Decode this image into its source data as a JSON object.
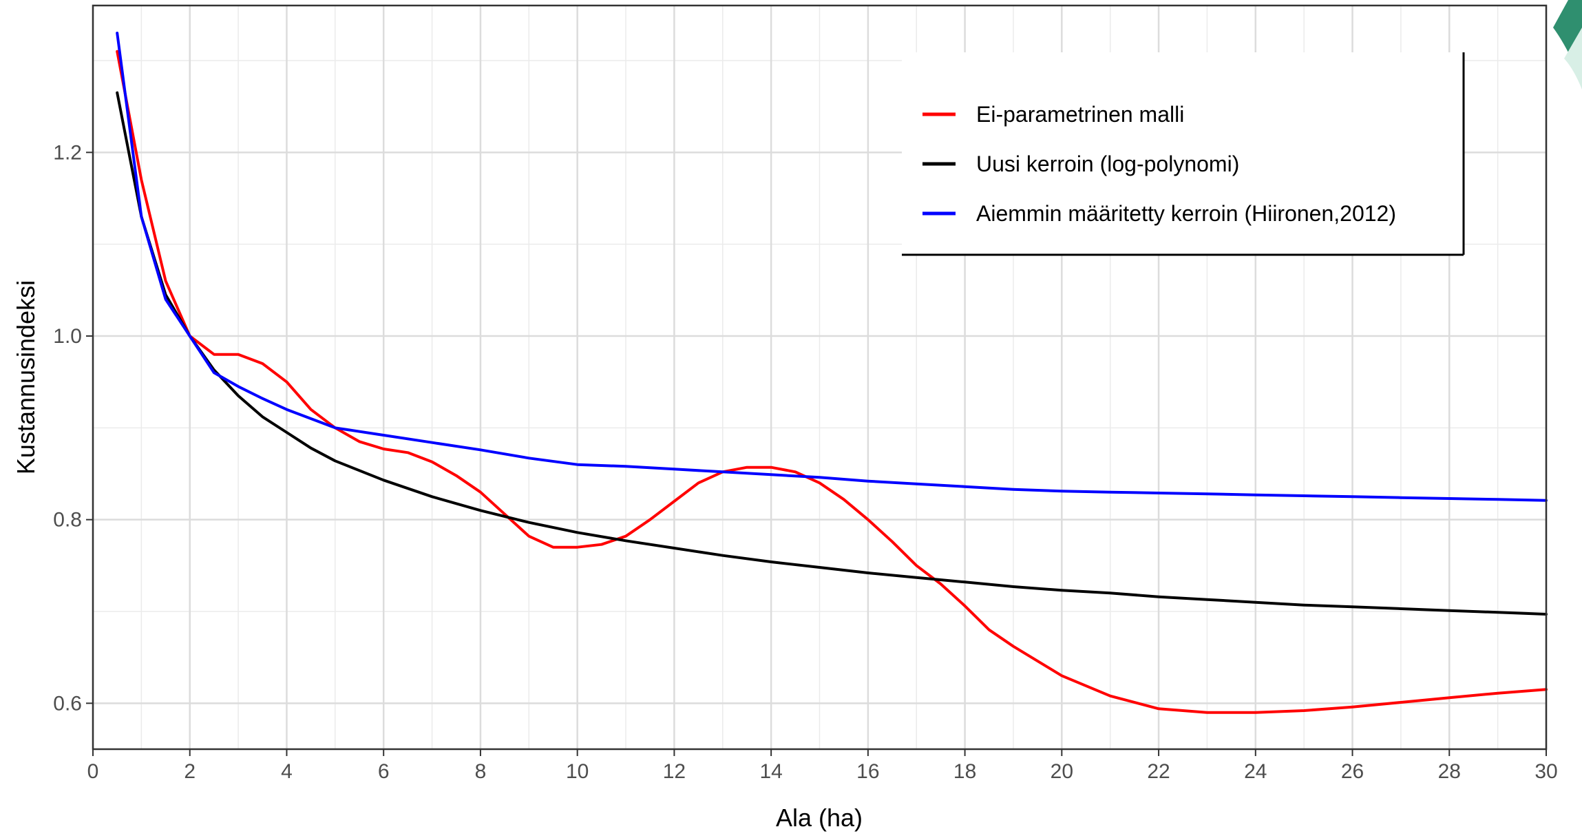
{
  "chart_data": {
    "type": "line",
    "title": "",
    "xlabel": "Ala (ha)",
    "ylabel": "Kustannusindeksi",
    "xlim": [
      0,
      30
    ],
    "ylim": [
      0.55,
      1.36
    ],
    "x_ticks": [
      0,
      2,
      4,
      6,
      8,
      10,
      12,
      14,
      16,
      18,
      20,
      22,
      24,
      26,
      28,
      30
    ],
    "y_ticks": [
      0.6,
      0.8,
      1.0,
      1.2
    ],
    "y_tick_labels": [
      "0.6",
      "0.8",
      "1.0",
      "1.2"
    ],
    "grid": true,
    "legend_position": "top-right",
    "series": [
      {
        "name": "Ei-parametrinen malli",
        "color": "#ff0000",
        "x": [
          0.5,
          1,
          1.5,
          2,
          2.5,
          3,
          3.5,
          4,
          4.5,
          5,
          5.5,
          6,
          6.5,
          7,
          7.5,
          8,
          8.5,
          9,
          9.5,
          10,
          10.5,
          11,
          11.5,
          12,
          12.5,
          13,
          13.5,
          14,
          14.5,
          15,
          15.5,
          16,
          16.5,
          17,
          17.5,
          18,
          18.5,
          19,
          20,
          21,
          22,
          23,
          24,
          25,
          26,
          27,
          28,
          29,
          30
        ],
        "y": [
          1.31,
          1.17,
          1.06,
          1.0,
          0.98,
          0.98,
          0.97,
          0.95,
          0.92,
          0.9,
          0.885,
          0.877,
          0.873,
          0.863,
          0.848,
          0.83,
          0.806,
          0.782,
          0.77,
          0.77,
          0.773,
          0.782,
          0.8,
          0.82,
          0.84,
          0.852,
          0.857,
          0.857,
          0.852,
          0.84,
          0.822,
          0.8,
          0.776,
          0.75,
          0.73,
          0.706,
          0.68,
          0.662,
          0.63,
          0.608,
          0.594,
          0.59,
          0.59,
          0.592,
          0.596,
          0.601,
          0.606,
          0.611,
          0.615
        ]
      },
      {
        "name": "Uusi kerroin (log-polynomi)",
        "color": "#000000",
        "x": [
          0.5,
          1,
          1.5,
          2,
          2.5,
          3,
          3.5,
          4,
          4.5,
          5,
          6,
          7,
          8,
          9,
          10,
          11,
          12,
          13,
          14,
          15,
          16,
          17,
          18,
          19,
          20,
          21,
          22,
          23,
          24,
          25,
          26,
          27,
          28,
          29,
          30
        ],
        "y": [
          1.265,
          1.13,
          1.045,
          1.0,
          0.963,
          0.935,
          0.912,
          0.895,
          0.878,
          0.864,
          0.843,
          0.825,
          0.81,
          0.797,
          0.786,
          0.777,
          0.769,
          0.761,
          0.754,
          0.748,
          0.742,
          0.737,
          0.732,
          0.727,
          0.723,
          0.72,
          0.716,
          0.713,
          0.71,
          0.707,
          0.705,
          0.703,
          0.701,
          0.699,
          0.697
        ]
      },
      {
        "name": "Aiemmin määritetty kerroin (Hiironen,2012)",
        "color": "#0000ff",
        "x": [
          0.5,
          1,
          1.5,
          2,
          2.5,
          3,
          3.5,
          4,
          5,
          6,
          7,
          8,
          9,
          10,
          11,
          12,
          13,
          14,
          15,
          16,
          17,
          18,
          19,
          20,
          21,
          22,
          23,
          24,
          25,
          26,
          27,
          28,
          29,
          30
        ],
        "y": [
          1.33,
          1.13,
          1.04,
          1.0,
          0.96,
          0.945,
          0.932,
          0.92,
          0.9,
          0.892,
          0.884,
          0.876,
          0.867,
          0.86,
          0.858,
          0.855,
          0.852,
          0.849,
          0.846,
          0.842,
          0.839,
          0.836,
          0.833,
          0.831,
          0.83,
          0.829,
          0.828,
          0.827,
          0.826,
          0.825,
          0.824,
          0.823,
          0.822,
          0.821
        ]
      }
    ]
  }
}
